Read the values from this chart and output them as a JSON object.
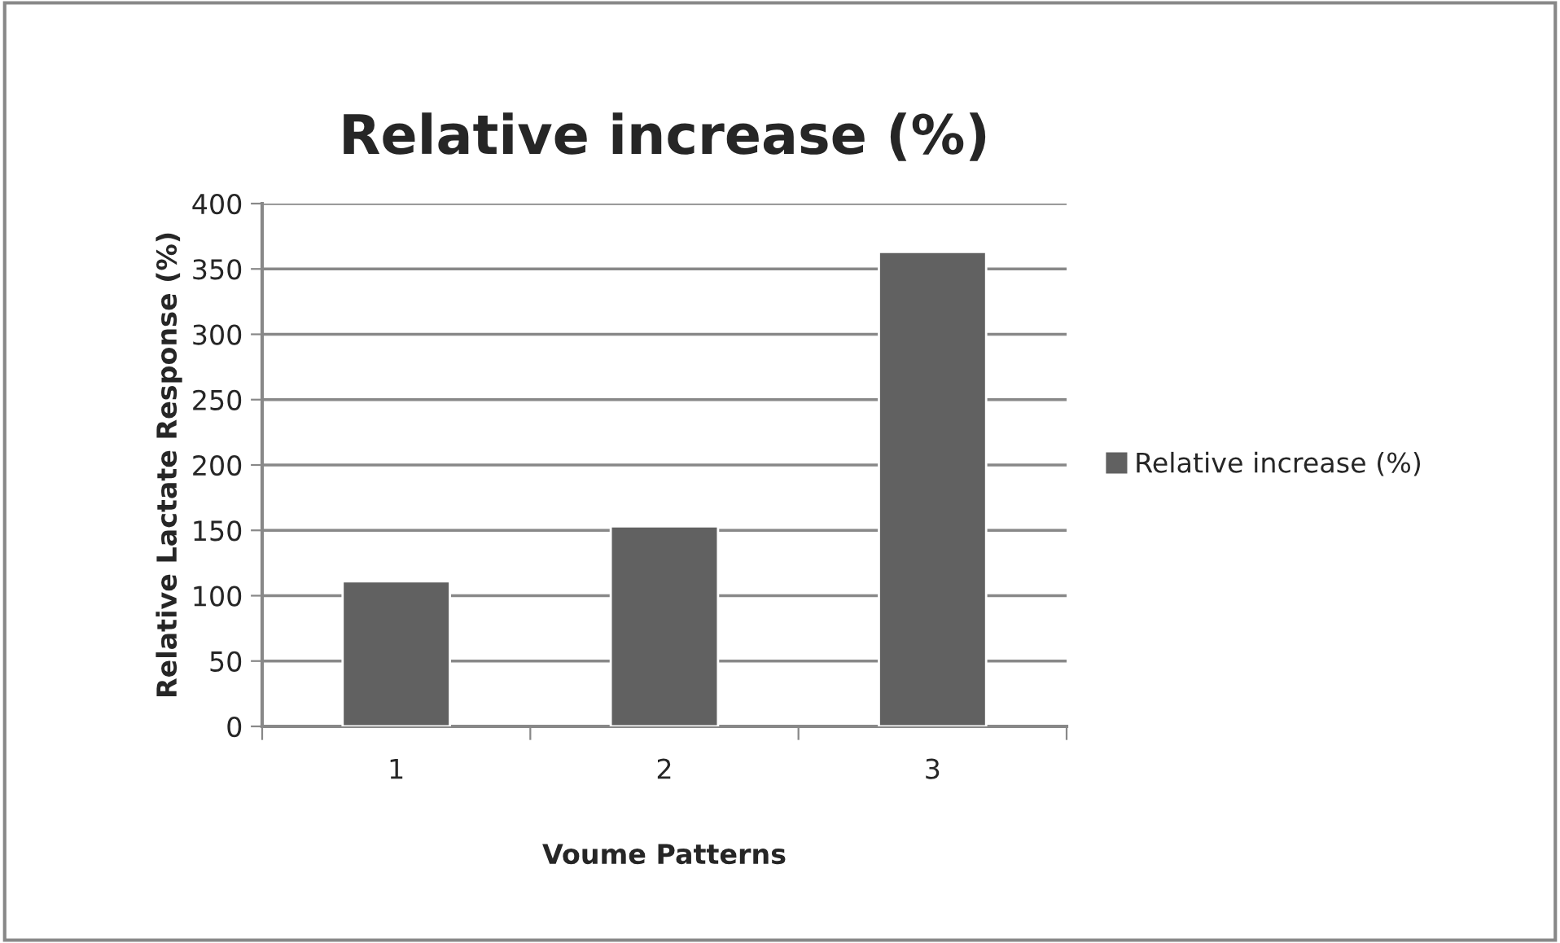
{
  "chart_data": {
    "type": "bar",
    "title": "Relative increase (%)",
    "xlabel": "Voume Patterns",
    "ylabel": "Relative Lactate Response (%)",
    "categories": [
      "1",
      "2",
      "3"
    ],
    "series": [
      {
        "name": "Relative increase (%)",
        "color": "#616161",
        "values": [
          111,
          153,
          363
        ]
      }
    ],
    "ylim": [
      0,
      400
    ],
    "yticks": [
      0,
      50,
      100,
      150,
      200,
      250,
      300,
      350,
      400
    ],
    "grid": "y",
    "legend": "right"
  }
}
